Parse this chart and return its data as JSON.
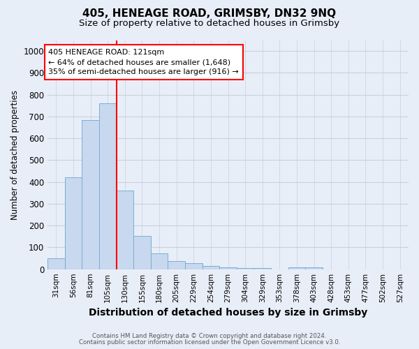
{
  "title": "405, HENEAGE ROAD, GRIMSBY, DN32 9NQ",
  "subtitle": "Size of property relative to detached houses in Grimsby",
  "xlabel": "Distribution of detached houses by size in Grimsby",
  "ylabel": "Number of detached properties",
  "footnote1": "Contains HM Land Registry data © Crown copyright and database right 2024.",
  "footnote2": "Contains public sector information licensed under the Open Government Licence v3.0.",
  "bin_labels": [
    "31sqm",
    "56sqm",
    "81sqm",
    "105sqm",
    "130sqm",
    "155sqm",
    "180sqm",
    "205sqm",
    "229sqm",
    "254sqm",
    "279sqm",
    "304sqm",
    "329sqm",
    "353sqm",
    "378sqm",
    "403sqm",
    "428sqm",
    "453sqm",
    "477sqm",
    "502sqm",
    "527sqm"
  ],
  "bar_heights": [
    50,
    422,
    683,
    760,
    362,
    152,
    72,
    38,
    27,
    15,
    8,
    6,
    5,
    0,
    8,
    7,
    0,
    0,
    0,
    0,
    0
  ],
  "bar_color": "#c8d8ee",
  "bar_edge_color": "#7aaed4",
  "bar_width": 1.0,
  "vline_x": 3.5,
  "vline_color": "red",
  "vline_linewidth": 1.5,
  "annotation_line1": "405 HENEAGE ROAD: 121sqm",
  "annotation_line2": "← 64% of detached houses are smaller (1,648)",
  "annotation_line3": "35% of semi-detached houses are larger (916) →",
  "annotation_box_color": "white",
  "annotation_box_edge_color": "red",
  "ylim": [
    0,
    1050
  ],
  "yticks": [
    0,
    100,
    200,
    300,
    400,
    500,
    600,
    700,
    800,
    900,
    1000
  ],
  "bg_color": "#e8eef8",
  "grid_color": "#c8d0e0",
  "title_fontsize": 11,
  "subtitle_fontsize": 9.5,
  "xlabel_fontsize": 10,
  "ylabel_fontsize": 8.5,
  "tick_fontsize": 7.5,
  "annotation_fontsize": 8
}
